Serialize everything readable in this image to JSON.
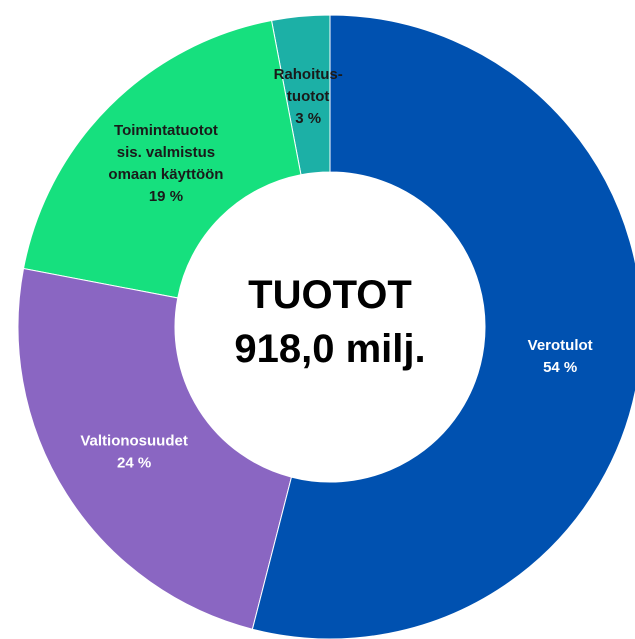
{
  "chart_data": {
    "type": "donut",
    "center_text": [
      "TUOTOT",
      "918,0 milj."
    ],
    "categories": [
      "Verotulot",
      "Valtionosuudet",
      "Toimintatuotot\nsis. valmistus\nomaan käyttöön",
      "Rahoitus-\ntuotot"
    ],
    "values": [
      54,
      24,
      19,
      3
    ],
    "value_labels": [
      "54 %",
      "24 %",
      "19 %",
      "3 %"
    ],
    "colors": [
      "#0051b0",
      "#8a66c2",
      "#16e07e",
      "#1cb0a6"
    ]
  }
}
